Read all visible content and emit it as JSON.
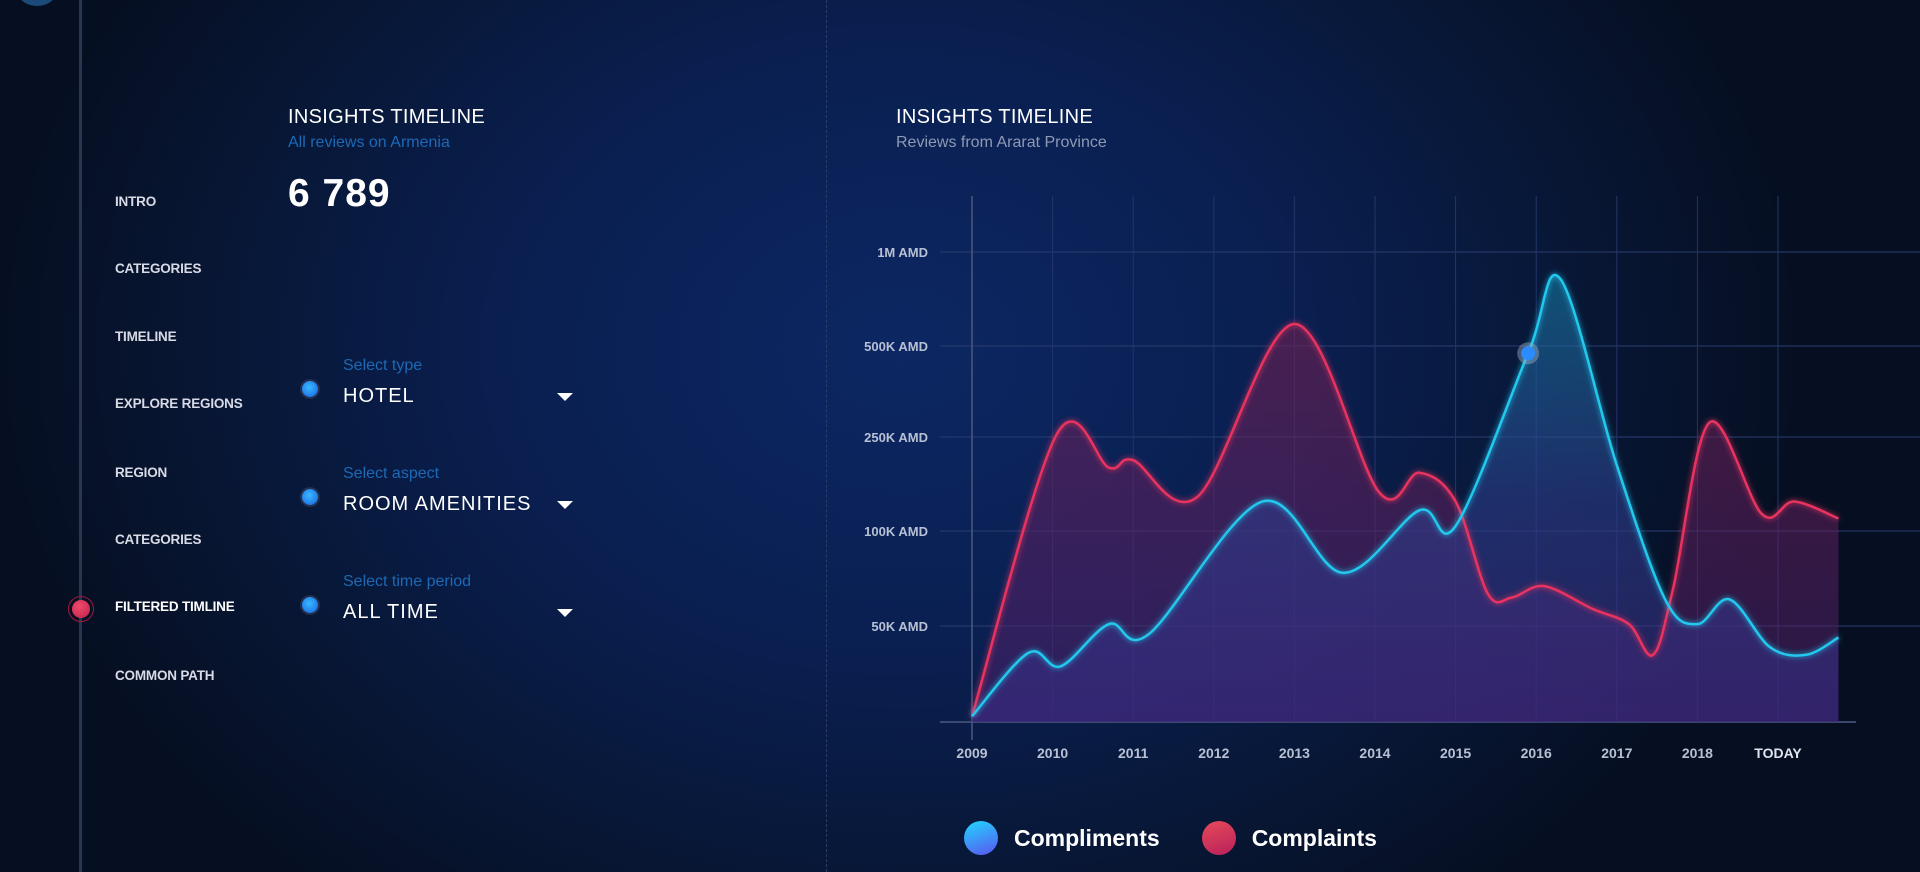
{
  "nav": {
    "items": [
      {
        "label": "INTRO"
      },
      {
        "label": "CATEGORIES"
      },
      {
        "label": "TIMELINE"
      },
      {
        "label": "EXPLORE REGIONS"
      },
      {
        "label": "REGION"
      },
      {
        "label": "CATEGORIES"
      },
      {
        "label": "FILTERED TIMLINE",
        "active": true
      },
      {
        "label": "COMMON PATH"
      }
    ]
  },
  "summary": {
    "title": "INSIGHTS TIMELINE",
    "subtitle": "All reviews on Armenia",
    "total": "6 789"
  },
  "filters": [
    {
      "label": "Select type",
      "value": "HOTEL"
    },
    {
      "label": "Select aspect",
      "value": "ROOM AMENITIES"
    },
    {
      "label": "Select time period",
      "value": "ALL TIME"
    }
  ],
  "colors": {
    "compliments": "#22c8ee",
    "complaints": "#e8335f",
    "accent_blue": "#1c69b5"
  },
  "chart_data": {
    "type": "area",
    "title": "INSIGHTS TIMELINE",
    "subtitle": "Reviews from Ararat Province",
    "xlabel": "",
    "ylabel": "",
    "x_ticks": [
      {
        "value": 2009,
        "label": "2009"
      },
      {
        "value": 2010,
        "label": "2010"
      },
      {
        "value": 2011,
        "label": "2011"
      },
      {
        "value": 2012,
        "label": "2012"
      },
      {
        "value": 2013,
        "label": "2013"
      },
      {
        "value": 2014,
        "label": "2014"
      },
      {
        "value": 2015,
        "label": "2015"
      },
      {
        "value": 2016,
        "label": "2016"
      },
      {
        "value": 2017,
        "label": "2017"
      },
      {
        "value": 2018,
        "label": "2018"
      },
      {
        "value": 2019,
        "label": "TODAY"
      }
    ],
    "y_ticks": [
      {
        "value": 0,
        "label": ""
      },
      {
        "value": 50000,
        "label": "50K AMD"
      },
      {
        "value": 100000,
        "label": "100K AMD"
      },
      {
        "value": 250000,
        "label": "250K AMD"
      },
      {
        "value": 500000,
        "label": "500K AMD"
      },
      {
        "value": 1000000,
        "label": "1M AMD"
      }
    ],
    "y_scale": "ordinal-piecewise",
    "grid": true,
    "legend_position": "bottom",
    "series": [
      {
        "name": "Compliments",
        "color": "#22c8ee",
        "points": [
          [
            2009,
            3000
          ],
          [
            2009.7,
            36000
          ],
          [
            2010.1,
            29000
          ],
          [
            2010.7,
            51000
          ],
          [
            2011.2,
            46000
          ],
          [
            2012.6,
            147000
          ],
          [
            2013.6,
            78000
          ],
          [
            2014.55,
            133000
          ],
          [
            2015,
            108000
          ],
          [
            2015.9,
            480000
          ],
          [
            2016.3,
            857000
          ],
          [
            2017,
            205000
          ],
          [
            2017.6,
            64000
          ],
          [
            2018,
            51000
          ],
          [
            2018.4,
            64000
          ],
          [
            2018.9,
            39000
          ],
          [
            2019.35,
            35000
          ],
          [
            2019.75,
            44000
          ]
        ]
      },
      {
        "name": "Complaints",
        "color": "#e8335f",
        "points": [
          [
            2009,
            3000
          ],
          [
            2010.05,
            257000
          ],
          [
            2010.7,
            201000
          ],
          [
            2011,
            213000
          ],
          [
            2011.8,
            155000
          ],
          [
            2013,
            617000
          ],
          [
            2014.05,
            162000
          ],
          [
            2014.55,
            193000
          ],
          [
            2015,
            147000
          ],
          [
            2015.4,
            67000
          ],
          [
            2015.7,
            65000
          ],
          [
            2016.1,
            71000
          ],
          [
            2016.7,
            59000
          ],
          [
            2017.15,
            51000
          ],
          [
            2017.45,
            35000
          ],
          [
            2017.7,
            70000
          ],
          [
            2018.15,
            290000
          ],
          [
            2018.8,
            127000
          ],
          [
            2019.2,
            147000
          ],
          [
            2019.75,
            120000
          ]
        ]
      }
    ],
    "highlight": {
      "series": "Compliments",
      "x": 2015.9,
      "y": 480000
    }
  }
}
